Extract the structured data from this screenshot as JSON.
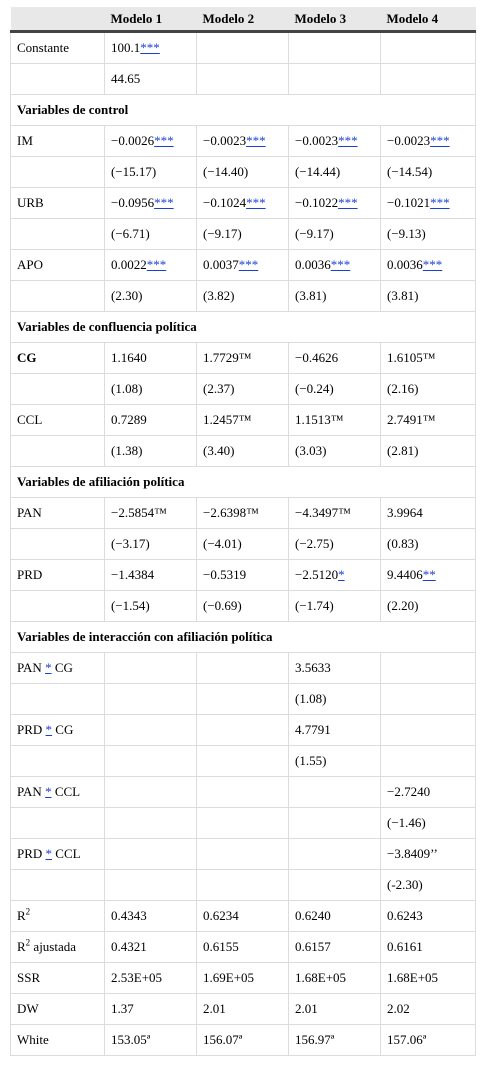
{
  "headers": [
    "",
    "Modelo 1",
    "Modelo 2",
    "Modelo 3",
    "Modelo 4"
  ],
  "rows": [
    {
      "type": "data",
      "label": "Constante",
      "cells": [
        {
          "v": "100.1",
          "s": "***"
        },
        {
          "v": ""
        },
        {
          "v": ""
        },
        {
          "v": ""
        }
      ]
    },
    {
      "type": "data",
      "label": "",
      "cells": [
        {
          "v": "44.65"
        },
        {
          "v": ""
        },
        {
          "v": ""
        },
        {
          "v": ""
        }
      ]
    },
    {
      "type": "section",
      "label": "Variables de control"
    },
    {
      "type": "data",
      "label": "IM",
      "cells": [
        {
          "v": "−0.0026",
          "s": "***"
        },
        {
          "v": "−0.0023",
          "s": "***"
        },
        {
          "v": "−0.0023",
          "s": "***"
        },
        {
          "v": "−0.0023",
          "s": "***"
        }
      ]
    },
    {
      "type": "data",
      "label": "",
      "cells": [
        {
          "v": "(−15.17)"
        },
        {
          "v": "(−14.40)"
        },
        {
          "v": "(−14.44)"
        },
        {
          "v": "(−14.54)"
        }
      ]
    },
    {
      "type": "data",
      "label": "URB",
      "cells": [
        {
          "v": "−0.0956",
          "s": "***"
        },
        {
          "v": "−0.1024",
          "s": "***"
        },
        {
          "v": "−0.1022",
          "s": "***"
        },
        {
          "v": "−0.1021",
          "s": "***"
        }
      ]
    },
    {
      "type": "data",
      "label": "",
      "cells": [
        {
          "v": "(−6.71)"
        },
        {
          "v": "(−9.17)"
        },
        {
          "v": "(−9.17)"
        },
        {
          "v": "(−9.13)"
        }
      ]
    },
    {
      "type": "data",
      "label": "APO",
      "cells": [
        {
          "v": "0.0022",
          "s": "***"
        },
        {
          "v": "0.0037",
          "s": "***"
        },
        {
          "v": "0.0036",
          "s": "***"
        },
        {
          "v": "0.0036",
          "s": "***"
        }
      ]
    },
    {
      "type": "data",
      "label": "",
      "cells": [
        {
          "v": "(2.30)"
        },
        {
          "v": "(3.82)"
        },
        {
          "v": "(3.81)"
        },
        {
          "v": "(3.81)"
        }
      ]
    },
    {
      "type": "section",
      "label": "Variables de confluencia política"
    },
    {
      "type": "data",
      "label": "CG",
      "bold": true,
      "cells": [
        {
          "v": "1.1640"
        },
        {
          "v": "1.7729™"
        },
        {
          "v": "−0.4626"
        },
        {
          "v": "1.6105™"
        }
      ]
    },
    {
      "type": "data",
      "label": "",
      "cells": [
        {
          "v": "(1.08)"
        },
        {
          "v": "(2.37)"
        },
        {
          "v": "(−0.24)"
        },
        {
          "v": "(2.16)"
        }
      ]
    },
    {
      "type": "data",
      "label": "CCL",
      "cells": [
        {
          "v": "0.7289"
        },
        {
          "v": "1.2457™"
        },
        {
          "v": "1.1513™"
        },
        {
          "v": "2.7491™"
        }
      ]
    },
    {
      "type": "data",
      "label": "",
      "cells": [
        {
          "v": "(1.38)"
        },
        {
          "v": "(3.40)"
        },
        {
          "v": "(3.03)"
        },
        {
          "v": "(2.81)"
        }
      ]
    },
    {
      "type": "section",
      "label": "Variables de afiliación política"
    },
    {
      "type": "data",
      "label": "PAN",
      "cells": [
        {
          "v": "−2.5854™"
        },
        {
          "v": "−2.6398™"
        },
        {
          "v": "−4.3497™"
        },
        {
          "v": "3.9964"
        }
      ]
    },
    {
      "type": "data",
      "label": "",
      "cells": [
        {
          "v": "(−3.17)"
        },
        {
          "v": "(−4.01)"
        },
        {
          "v": "(−2.75)"
        },
        {
          "v": "(0.83)"
        }
      ]
    },
    {
      "type": "data",
      "label": "PRD",
      "cells": [
        {
          "v": "−1.4384"
        },
        {
          "v": "−0.5319"
        },
        {
          "v": "−2.5120",
          "s": "*"
        },
        {
          "v": "9.4406",
          "s": "**"
        }
      ]
    },
    {
      "type": "data",
      "label": "",
      "cells": [
        {
          "v": "(−1.54)"
        },
        {
          "v": "(−0.69)"
        },
        {
          "v": "(−1.74)"
        },
        {
          "v": "(2.20)"
        }
      ]
    },
    {
      "type": "section",
      "label": "Variables de interacción con afiliación política"
    },
    {
      "type": "data",
      "label": "PAN * CG",
      "lp": [
        "PAN ",
        "*",
        " CG"
      ],
      "cells": [
        {
          "v": ""
        },
        {
          "v": ""
        },
        {
          "v": "3.5633"
        },
        {
          "v": ""
        }
      ]
    },
    {
      "type": "data",
      "label": "",
      "cells": [
        {
          "v": ""
        },
        {
          "v": ""
        },
        {
          "v": "(1.08)"
        },
        {
          "v": ""
        }
      ]
    },
    {
      "type": "data",
      "label": "PRD * CG",
      "lp": [
        "PRD ",
        "*",
        " CG"
      ],
      "cells": [
        {
          "v": ""
        },
        {
          "v": ""
        },
        {
          "v": "4.7791"
        },
        {
          "v": ""
        }
      ]
    },
    {
      "type": "data",
      "label": "",
      "cells": [
        {
          "v": ""
        },
        {
          "v": ""
        },
        {
          "v": "(1.55)"
        },
        {
          "v": ""
        }
      ]
    },
    {
      "type": "data",
      "label": "PAN * CCL",
      "lp": [
        "PAN ",
        "*",
        " CCL"
      ],
      "cells": [
        {
          "v": ""
        },
        {
          "v": ""
        },
        {
          "v": ""
        },
        {
          "v": "−2.7240"
        }
      ]
    },
    {
      "type": "data",
      "label": "",
      "cells": [
        {
          "v": ""
        },
        {
          "v": ""
        },
        {
          "v": ""
        },
        {
          "v": "(−1.46)"
        }
      ]
    },
    {
      "type": "data",
      "label": "PRD * CCL",
      "lp": [
        "PRD ",
        "*",
        " CCL"
      ],
      "cells": [
        {
          "v": ""
        },
        {
          "v": ""
        },
        {
          "v": ""
        },
        {
          "v": "−3.8409’’"
        }
      ]
    },
    {
      "type": "data",
      "label": "",
      "cells": [
        {
          "v": ""
        },
        {
          "v": ""
        },
        {
          "v": ""
        },
        {
          "v": "(-2.30)"
        }
      ]
    },
    {
      "type": "data",
      "label": "R2",
      "lp": [
        "R",
        "2",
        ""
      ],
      "lsup": true,
      "cells": [
        {
          "v": "0.4343"
        },
        {
          "v": "0.6234"
        },
        {
          "v": "0.6240"
        },
        {
          "v": "0.6243"
        }
      ]
    },
    {
      "type": "data",
      "label": "R2 ajustada",
      "lp": [
        "R",
        "2",
        " ajustada"
      ],
      "lsup": true,
      "cells": [
        {
          "v": "0.4321"
        },
        {
          "v": "0.6155"
        },
        {
          "v": "0.6157"
        },
        {
          "v": "0.6161"
        }
      ]
    },
    {
      "type": "data",
      "label": "SSR",
      "cells": [
        {
          "v": "2.53E+05"
        },
        {
          "v": "1.69E+05"
        },
        {
          "v": "1.68E+05"
        },
        {
          "v": "1.68E+05"
        }
      ]
    },
    {
      "type": "data",
      "label": "DW",
      "cells": [
        {
          "v": "1.37"
        },
        {
          "v": "2.01"
        },
        {
          "v": "2.01"
        },
        {
          "v": "2.02"
        }
      ]
    },
    {
      "type": "data",
      "label": "White",
      "cells": [
        {
          "v": "153.05ª"
        },
        {
          "v": "156.07ª"
        },
        {
          "v": "156.97ª"
        },
        {
          "v": "157.06ª"
        }
      ]
    }
  ]
}
